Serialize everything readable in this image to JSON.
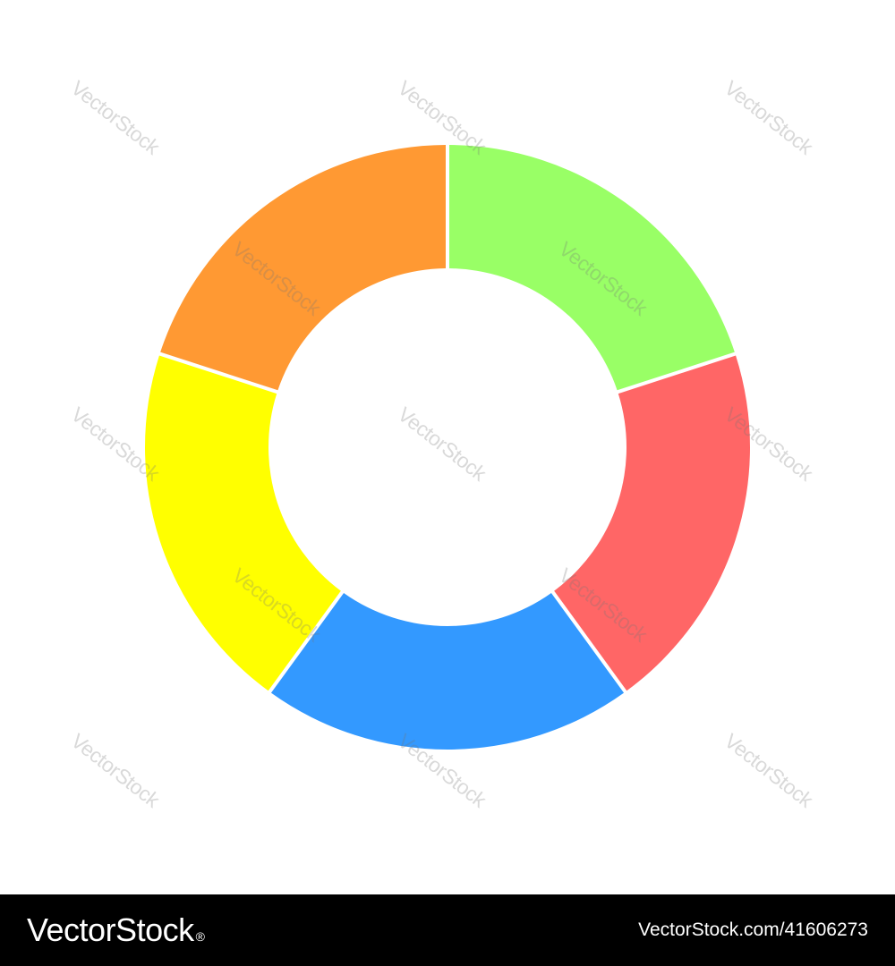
{
  "chart_data": {
    "type": "pie",
    "variant": "donut",
    "title": "",
    "slices": [
      {
        "value": 20,
        "color": "#99ff66"
      },
      {
        "value": 20,
        "color": "#ff6666"
      },
      {
        "value": 20,
        "color": "#3399ff"
      },
      {
        "value": 20,
        "color": "#ffff00"
      },
      {
        "value": 20,
        "color": "#ff9933"
      }
    ],
    "start": "top",
    "direction": "clockwise",
    "legend": "none"
  },
  "watermark": {
    "text": "VectorStock"
  },
  "footer": {
    "brand": "VectorStock",
    "brand_mark": "®",
    "url": "VectorStock.com/41606273"
  },
  "colors": {
    "background": "#ffffff",
    "footer_background": "#000000",
    "separator": "#ffffff"
  }
}
